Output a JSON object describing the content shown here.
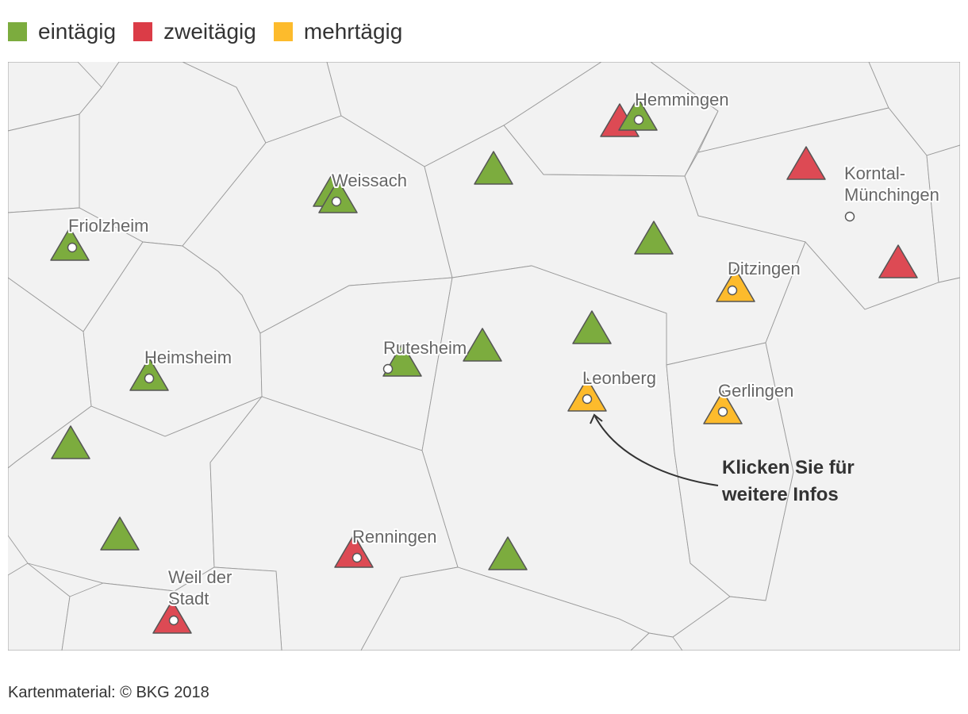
{
  "legend": [
    {
      "label": "eintägig",
      "color": "#7cac3e"
    },
    {
      "label": "zweitägig",
      "color": "#db3c47"
    },
    {
      "label": "mehrtägig",
      "color": "#fdbb2c"
    }
  ],
  "category_colors": {
    "eintägig": "#7cac3e",
    "zweitägig": "#db3c47",
    "mehrtägig": "#fdbb2c"
  },
  "places": [
    {
      "name": "Hemmingen"
    },
    {
      "name": "Weissach"
    },
    {
      "name": "Korntal-\nMünchingen"
    },
    {
      "name": "Friolzheim"
    },
    {
      "name": "Ditzingen"
    },
    {
      "name": "Rutesheim"
    },
    {
      "name": "Heimsheim"
    },
    {
      "name": "Leonberg"
    },
    {
      "name": "Gerlingen"
    },
    {
      "name": "Renningen"
    },
    {
      "name": "Weil der\nStadt"
    }
  ],
  "callout": {
    "line1": "Klicken Sie für",
    "line2": "weitere Infos"
  },
  "source": "Kartenmaterial: © BKG 2018"
}
